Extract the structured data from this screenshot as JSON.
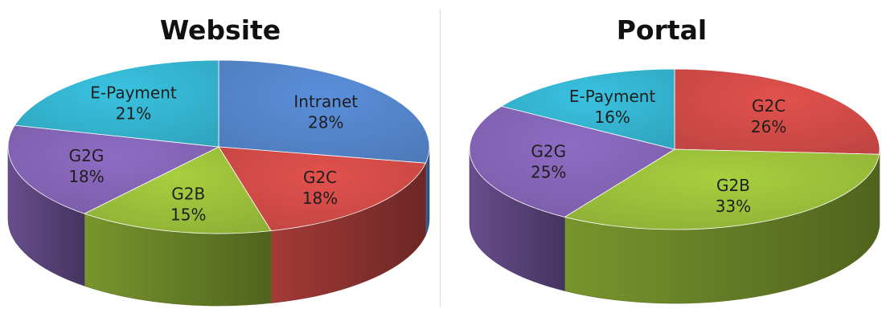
{
  "chart_data": [
    {
      "type": "pie",
      "title": "Website",
      "slices": [
        {
          "label": "Intranet",
          "value": 28,
          "display": "28%",
          "color": "#5b8fdb"
        },
        {
          "label": "G2C",
          "value": 18,
          "display": "18%",
          "color": "#e2514d"
        },
        {
          "label": "G2B",
          "value": 15,
          "display": "15%",
          "color": "#a7cf3f"
        },
        {
          "label": "G2G",
          "value": 18,
          "display": "18%",
          "color": "#8f6cc4"
        },
        {
          "label": "E-Payment",
          "value": 21,
          "display": "21%",
          "color": "#39c2e0"
        }
      ]
    },
    {
      "type": "pie",
      "title": "Portal",
      "slices": [
        {
          "label": "G2C",
          "value": 26,
          "display": "26%",
          "color": "#e2514d"
        },
        {
          "label": "G2B",
          "value": 33,
          "display": "33%",
          "color": "#a7cf3f"
        },
        {
          "label": "G2G",
          "value": 25,
          "display": "25%",
          "color": "#8f6cc4"
        },
        {
          "label": "E-Payment",
          "value": 16,
          "display": "16%",
          "color": "#39c2e0"
        }
      ]
    }
  ]
}
